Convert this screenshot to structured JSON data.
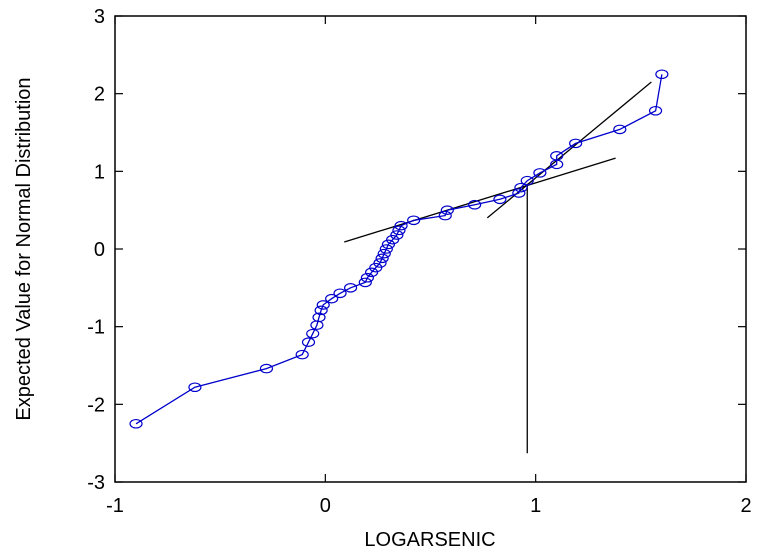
{
  "chart_data": {
    "type": "scatter",
    "title": "",
    "xlabel": "LOGARSENIC",
    "ylabel": "Expected Value for Normal Distribution",
    "xlim": [
      -1,
      2
    ],
    "ylim": [
      -3,
      3
    ],
    "xticks": [
      -1,
      0,
      1,
      2
    ],
    "yticks": [
      -3,
      -2,
      -1,
      0,
      1,
      2,
      3
    ],
    "xtick_labels": [
      "-1",
      "0",
      "1",
      "2"
    ],
    "ytick_labels": [
      "-3",
      "-2",
      "-1",
      "0",
      "1",
      "2",
      "3"
    ],
    "grid": false,
    "legend": "none",
    "series_color": "#0000cc",
    "line_color": "#000000",
    "points": [
      [
        -0.9,
        -2.25
      ],
      [
        -0.62,
        -1.78
      ],
      [
        -0.28,
        -1.54
      ],
      [
        -0.11,
        -1.36
      ],
      [
        -0.08,
        -1.2
      ],
      [
        -0.06,
        -1.09
      ],
      [
        -0.04,
        -0.98
      ],
      [
        -0.03,
        -0.88
      ],
      [
        -0.02,
        -0.79
      ],
      [
        -0.01,
        -0.72
      ],
      [
        0.03,
        -0.64
      ],
      [
        0.07,
        -0.57
      ],
      [
        0.12,
        -0.5
      ],
      [
        0.19,
        -0.43
      ],
      [
        0.2,
        -0.37
      ],
      [
        0.22,
        -0.3
      ],
      [
        0.24,
        -0.24
      ],
      [
        0.26,
        -0.18
      ],
      [
        0.27,
        -0.12
      ],
      [
        0.28,
        -0.06
      ],
      [
        0.29,
        0.0
      ],
      [
        0.3,
        0.06
      ],
      [
        0.32,
        0.12
      ],
      [
        0.34,
        0.18
      ],
      [
        0.35,
        0.24
      ],
      [
        0.36,
        0.3
      ],
      [
        0.42,
        0.37
      ],
      [
        0.57,
        0.43
      ],
      [
        0.58,
        0.5
      ],
      [
        0.71,
        0.57
      ],
      [
        0.83,
        0.64
      ],
      [
        0.92,
        0.72
      ],
      [
        0.93,
        0.79
      ],
      [
        0.96,
        0.88
      ],
      [
        1.02,
        0.98
      ],
      [
        1.1,
        1.09
      ],
      [
        1.1,
        1.2
      ],
      [
        1.19,
        1.36
      ],
      [
        1.4,
        1.54
      ],
      [
        1.57,
        1.78
      ],
      [
        1.6,
        2.25
      ]
    ],
    "reference_lines": [
      {
        "x1": 0.09,
        "y1": 0.09,
        "x2": 1.38,
        "y2": 1.17
      },
      {
        "x1": 0.77,
        "y1": 0.4,
        "x2": 1.55,
        "y2": 2.15
      },
      {
        "x1": 0.96,
        "y1": -2.63,
        "x2": 0.96,
        "y2": 0.84
      }
    ]
  }
}
